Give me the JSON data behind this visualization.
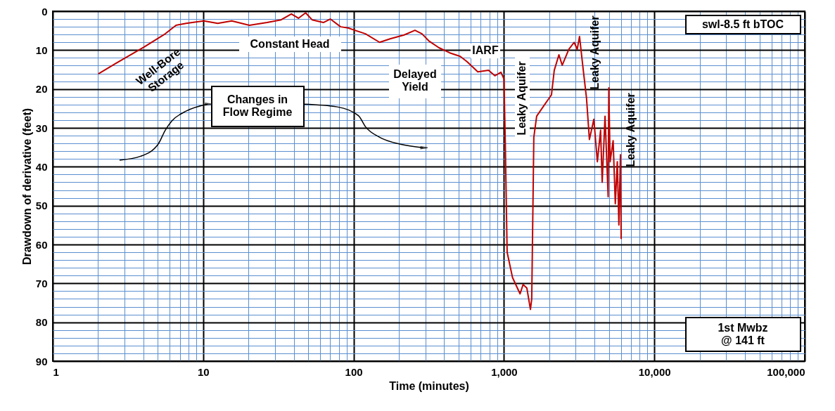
{
  "chart_data": {
    "type": "line",
    "xlabel": "Time (minutes)",
    "ylabel": "Drawdown of derivative (feet)",
    "log": "x",
    "xlim": [
      1,
      100000
    ],
    "ylim": [
      90,
      0
    ],
    "xticks": [
      1,
      {
        "value": 2,
        "label": null
      },
      {
        "value": 3,
        "label": null
      },
      {
        "value": 4,
        "label": null
      },
      {
        "value": 5,
        "label": null
      },
      {
        "value": 6,
        "label": null
      },
      {
        "value": 7,
        "label": null
      },
      {
        "value": 8,
        "label": null
      },
      {
        "value": 9,
        "label": null
      },
      10,
      {
        "value": 20,
        "label": null
      },
      {
        "value": 30,
        "label": null
      },
      {
        "value": 40,
        "label": null
      },
      {
        "value": 50,
        "label": null
      },
      {
        "value": 60,
        "label": null
      },
      {
        "value": 70,
        "label": null
      },
      {
        "value": 80,
        "label": null
      },
      {
        "value": 90,
        "label": null
      },
      100,
      {
        "value": 200,
        "label": null
      },
      {
        "value": 300,
        "label": null
      },
      {
        "value": 400,
        "label": null
      },
      {
        "value": 500,
        "label": null
      },
      {
        "value": 600,
        "label": null
      },
      {
        "value": 700,
        "label": null
      },
      {
        "value": 800,
        "label": null
      },
      {
        "value": 900,
        "label": null
      },
      {
        "value": 1000,
        "label": "1,000"
      },
      {
        "value": 2000,
        "label": null
      },
      {
        "value": 3000,
        "label": null
      },
      {
        "value": 4000,
        "label": null
      },
      {
        "value": 5000,
        "label": null
      },
      {
        "value": 6000,
        "label": null
      },
      {
        "value": 7000,
        "label": null
      },
      {
        "value": 8000,
        "label": null
      },
      {
        "value": 9000,
        "label": null
      },
      {
        "value": 10000,
        "label": "10,000"
      },
      {
        "value": 20000,
        "label": null
      },
      {
        "value": 30000,
        "label": null
      },
      {
        "value": 40000,
        "label": null
      },
      {
        "value": 50000,
        "label": null
      },
      {
        "value": 60000,
        "label": null
      },
      {
        "value": 70000,
        "label": null
      },
      {
        "value": 80000,
        "label": null
      },
      {
        "value": 90000,
        "label": null
      },
      {
        "value": 100000,
        "label": "100,000"
      }
    ],
    "yticks": [
      0,
      {
        "value": 2,
        "label": null
      },
      {
        "value": 4,
        "label": null
      },
      {
        "value": 6,
        "label": null
      },
      {
        "value": 8,
        "label": null
      },
      10,
      {
        "value": 12,
        "label": null
      },
      {
        "value": 14,
        "label": null
      },
      {
        "value": 16,
        "label": null
      },
      {
        "value": 18,
        "label": null
      },
      20,
      {
        "value": 22,
        "label": null
      },
      {
        "value": 24,
        "label": null
      },
      {
        "value": 26,
        "label": null
      },
      {
        "value": 28,
        "label": null
      },
      30,
      {
        "value": 32,
        "label": null
      },
      {
        "value": 34,
        "label": null
      },
      {
        "value": 36,
        "label": null
      },
      {
        "value": 38,
        "label": null
      },
      40,
      {
        "value": 42,
        "label": null
      },
      {
        "value": 44,
        "label": null
      },
      {
        "value": 46,
        "label": null
      },
      {
        "value": 48,
        "label": null
      },
      50,
      {
        "value": 52,
        "label": null
      },
      {
        "value": 54,
        "label": null
      },
      {
        "value": 56,
        "label": null
      },
      {
        "value": 58,
        "label": null
      },
      60,
      {
        "value": 62,
        "label": null
      },
      {
        "value": 64,
        "label": null
      },
      {
        "value": 66,
        "label": null
      },
      {
        "value": 68,
        "label": null
      },
      70,
      {
        "value": 72,
        "label": null
      },
      {
        "value": 74,
        "label": null
      },
      {
        "value": 76,
        "label": null
      },
      {
        "value": 78,
        "label": null
      },
      80,
      {
        "value": 82,
        "label": null
      },
      {
        "value": 84,
        "label": null
      },
      {
        "value": 86,
        "label": null
      },
      {
        "value": 88,
        "label": null
      },
      90
    ],
    "grid": true,
    "series": [
      {
        "color": "#c00000",
        "x": [
          2.01,
          2.63,
          4.05,
          5.6,
          6.6,
          7.7,
          10.1,
          12.5,
          15.5,
          20.3,
          26.6,
          33,
          38.6,
          43,
          48,
          53,
          63,
          70,
          82,
          92,
          102,
          120,
          149,
          175,
          217,
          256,
          285,
          316,
          370,
          436,
          512,
          570,
          670,
          790,
          870,
          955,
          1000,
          1020,
          1050,
          1140,
          1280,
          1340,
          1420,
          1500,
          1530,
          1580,
          1650,
          1850,
          2070,
          2160,
          2320,
          2440,
          2700,
          2930,
          3070,
          3180,
          3360,
          3540,
          3700,
          3960,
          4180,
          4390,
          4500,
          4700,
          4930,
          4980,
          5080,
          5320,
          5500,
          5670,
          5810,
          5950,
          6020
        ],
        "values": [
          16.1,
          13.4,
          9.2,
          5.8,
          3.6,
          3.1,
          2.5,
          3.1,
          2.5,
          3.6,
          2.9,
          2.2,
          0.7,
          1.8,
          0.4,
          2.2,
          2.9,
          2.0,
          4.0,
          4.3,
          4.9,
          5.8,
          8.0,
          7.1,
          6.1,
          4.9,
          5.8,
          7.6,
          9.4,
          10.7,
          11.6,
          13.0,
          15.6,
          15.2,
          16.6,
          15.7,
          17.4,
          33,
          62,
          68.5,
          72.7,
          70.3,
          71.2,
          76.7,
          74,
          32.4,
          27,
          24.2,
          21.5,
          15.2,
          11.2,
          13.9,
          9.8,
          8,
          9.8,
          6.5,
          14.8,
          22.4,
          33,
          27.8,
          38.7,
          30.6,
          44,
          27,
          47.7,
          19.7,
          38.7,
          33.3,
          49.5,
          38.7,
          55,
          36.9,
          58.6
        ]
      }
    ],
    "annotations": [
      "Well-Bore\nStorage",
      "Constant Head",
      "Changes in\nFlow Regime",
      "Delayed\nYield",
      "IARF",
      "Leaky Aquifer",
      "Leaky Aquifer",
      "Leaky Aquifer",
      "swl-8.5 ft bTOC",
      "1st Mwbz\n@  141 ft"
    ]
  }
}
